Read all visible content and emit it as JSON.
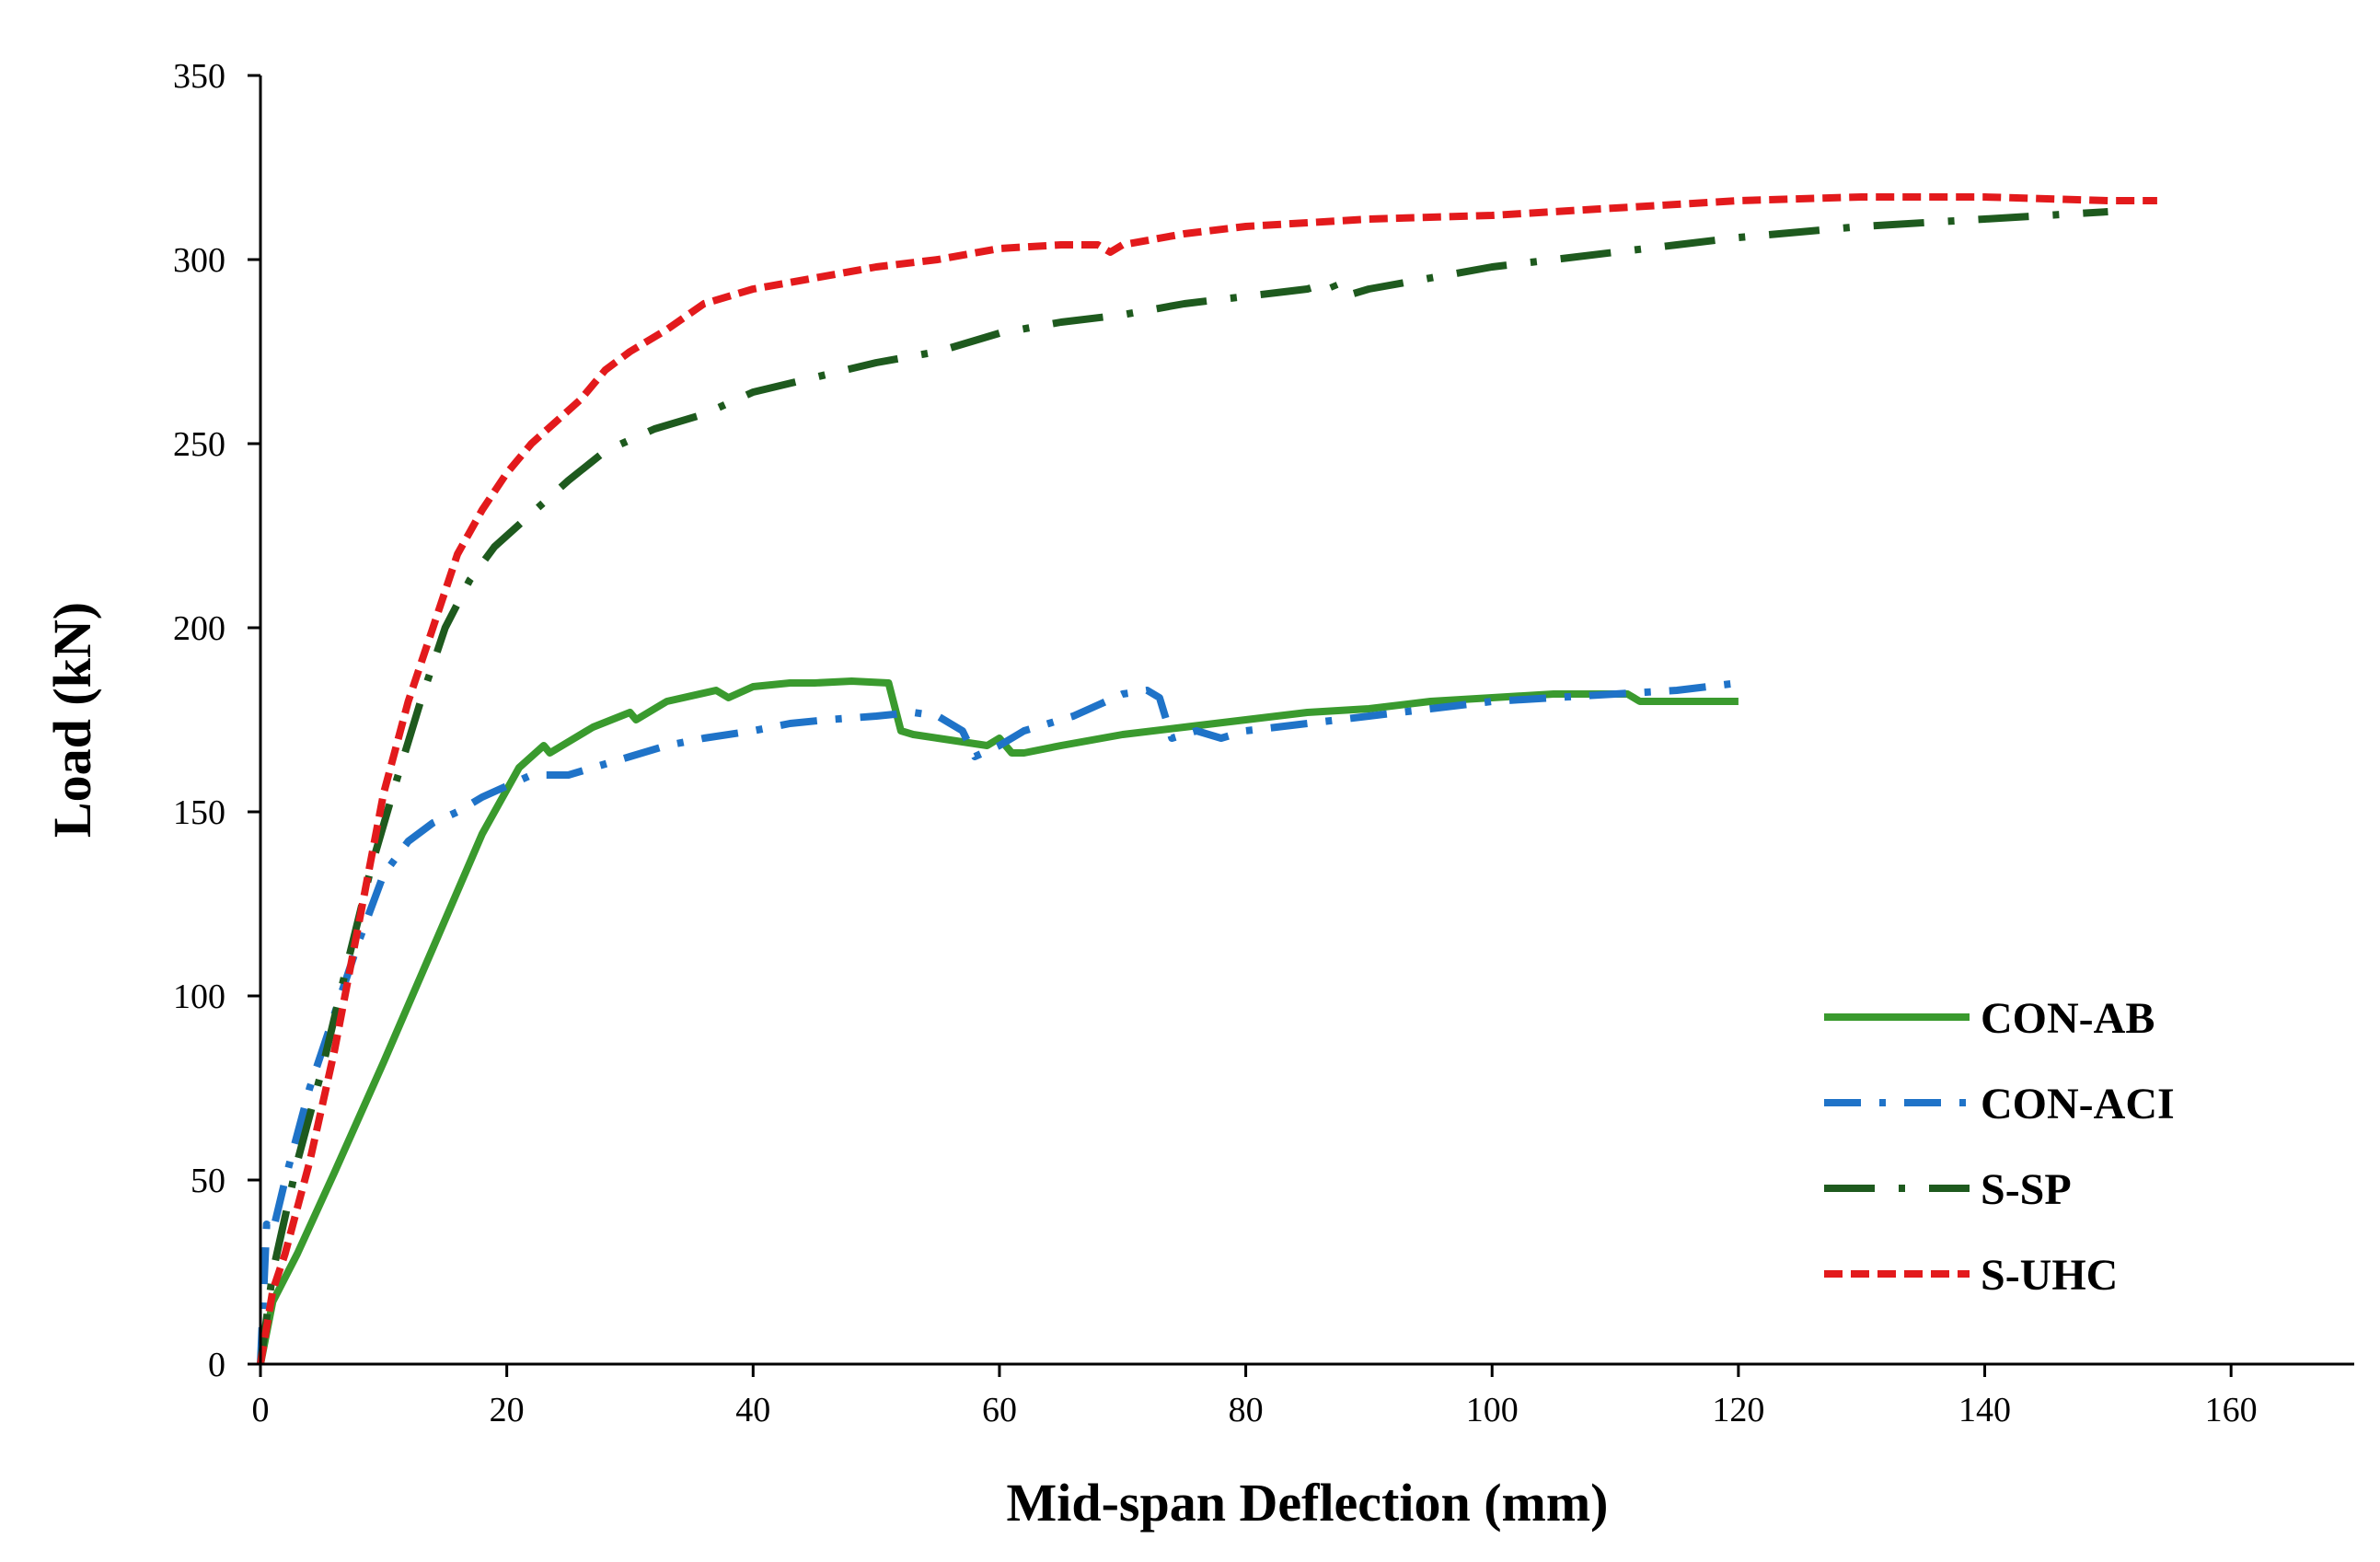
{
  "chart_data": {
    "type": "line",
    "title": "",
    "xlabel": "Mid-span Deflection (mm)",
    "ylabel": "Load (kN)",
    "xlim": [
      0,
      170
    ],
    "ylim": [
      0,
      350
    ],
    "xticks": [
      0,
      20,
      40,
      60,
      80,
      100,
      120,
      140,
      160
    ],
    "yticks": [
      0,
      50,
      100,
      150,
      200,
      250,
      300,
      350
    ],
    "grid": false,
    "legend_position": "bottom-right",
    "series": [
      {
        "name": "CON-AB",
        "color": "#3a9a2e",
        "dash": "solid",
        "x": [
          0,
          1,
          3,
          6,
          10,
          14,
          18,
          21,
          23,
          23.5,
          24,
          27,
          30,
          30.5,
          33,
          37,
          38,
          40,
          43,
          45,
          48,
          51,
          52,
          53,
          55,
          57,
          59,
          60,
          61,
          62,
          65,
          70,
          75,
          80,
          85,
          90,
          95,
          100,
          105,
          110,
          111,
          112,
          115,
          120
        ],
        "y": [
          0,
          17,
          30,
          52,
          82,
          113,
          144,
          162,
          168,
          166,
          167,
          173,
          177,
          175,
          180,
          183,
          181,
          184,
          185,
          185,
          185.5,
          185,
          172,
          171,
          170,
          169,
          168,
          170,
          166,
          166,
          168,
          171,
          173,
          175,
          177,
          178,
          180,
          181,
          182,
          182,
          182,
          180,
          180,
          180
        ]
      },
      {
        "name": "CON-ACI",
        "color": "#1f73c8",
        "dash": "dashdot",
        "x": [
          0,
          0.5,
          1,
          2,
          4,
          6,
          8,
          10,
          12,
          14,
          16,
          18,
          20,
          22,
          25,
          28,
          30,
          33,
          36,
          40,
          43,
          46,
          50,
          53,
          55,
          57,
          58,
          60,
          62,
          64,
          66,
          68,
          70,
          72,
          73,
          74,
          76,
          78,
          80,
          85,
          90,
          95,
          100,
          105,
          110,
          115,
          120
        ],
        "y": [
          0,
          38,
          36,
          50,
          75,
          95,
          115,
          133,
          142,
          147,
          150,
          154,
          157,
          160,
          160,
          163,
          165,
          168,
          170,
          172,
          174,
          175,
          176,
          177,
          176,
          172,
          165,
          168,
          172,
          174,
          176,
          179,
          182,
          183,
          181,
          170,
          172,
          170,
          172,
          174,
          176,
          178,
          180,
          181,
          182,
          183,
          185
        ]
      },
      {
        "name": "S-SP",
        "color": "#1e5a1e",
        "dash": "longdashdot",
        "x": [
          0,
          1,
          3,
          5,
          7,
          9,
          11,
          13,
          15,
          17,
          19,
          21,
          23,
          25,
          28,
          32,
          36,
          40,
          45,
          50,
          55,
          60,
          65,
          70,
          75,
          80,
          85,
          87,
          87.5,
          88,
          90,
          95,
          100,
          105,
          110,
          115,
          120,
          130,
          140,
          150
        ],
        "y": [
          0,
          25,
          55,
          80,
          108,
          135,
          158,
          180,
          200,
          213,
          222,
          228,
          234,
          240,
          248,
          254,
          258,
          264,
          268,
          272,
          275,
          280,
          283,
          285,
          288,
          290,
          292,
          294,
          290,
          290,
          292,
          295,
          298,
          300,
          302,
          304,
          306,
          309,
          311,
          313
        ]
      },
      {
        "name": "S-UHC",
        "color": "#e31a1c",
        "dash": "dashed",
        "x": [
          0,
          1,
          2,
          4,
          6,
          8,
          10,
          12,
          14,
          16,
          18,
          20,
          22,
          24,
          26,
          28,
          30,
          33,
          36,
          40,
          45,
          50,
          55,
          60,
          65,
          68,
          69,
          70,
          75,
          80,
          85,
          90,
          100,
          110,
          120,
          130,
          140,
          150,
          154
        ],
        "y": [
          0,
          20,
          30,
          55,
          85,
          120,
          155,
          180,
          200,
          220,
          232,
          242,
          250,
          256,
          262,
          270,
          275,
          281,
          288,
          292,
          295,
          298,
          300,
          303,
          304,
          304,
          302,
          304,
          307,
          309,
          310,
          311,
          312,
          314,
          316,
          317,
          317,
          316,
          316
        ]
      }
    ]
  }
}
